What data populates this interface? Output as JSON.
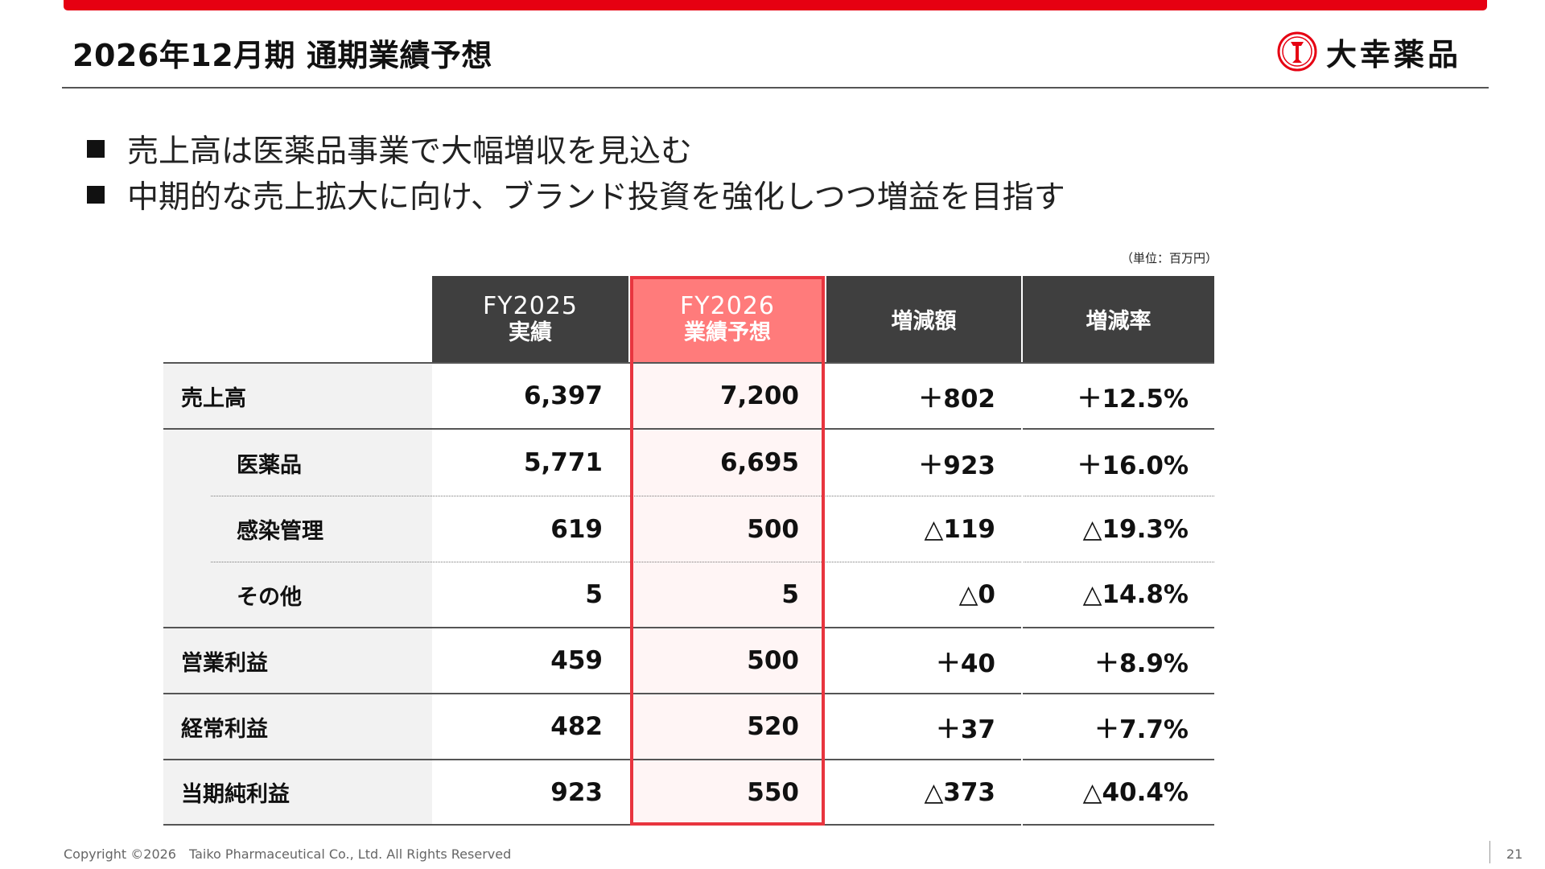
{
  "slide": {
    "title": "2026年12月期 通期業績予想",
    "accent_color": "#e60012",
    "logo": {
      "icon": "taiko-mark-icon",
      "text": "大幸薬品"
    },
    "bullets": [
      "売上高は医薬品事業で大幅増収を見込む",
      "中期的な売上拡大に向け、ブランド投資を強化しつつ増益を目指す"
    ],
    "unit_note": "（単位：百万円）",
    "copyright": "Copyright ©2026　Taiko Pharmaceutical Co., Ltd. All Rights Reserved",
    "page_number": "21"
  },
  "table": {
    "headers": [
      {
        "line1": "FY2025",
        "line2": "実績"
      },
      {
        "line1": "FY2026",
        "line2": "業績予想"
      },
      {
        "line1": "増減額"
      },
      {
        "line1": "増減率"
      }
    ],
    "rows": [
      {
        "label": "売上高",
        "values": [
          "6,397",
          "7,200",
          "＋802",
          "＋12.5%"
        ]
      },
      {
        "label": "医薬品",
        "values": [
          "5,771",
          "6,695",
          "＋923",
          "＋16.0%"
        ]
      },
      {
        "label": "感染管理",
        "values": [
          "619",
          "500",
          "△119",
          "△19.3%"
        ]
      },
      {
        "label": "その他",
        "values": [
          "5",
          "5",
          "△0",
          "△14.8%"
        ]
      },
      {
        "label": "営業利益",
        "values": [
          "459",
          "500",
          "＋40",
          "＋8.9%"
        ]
      },
      {
        "label": "経常利益",
        "values": [
          "482",
          "520",
          "＋37",
          "＋7.7%"
        ]
      },
      {
        "label": "当期純利益",
        "values": [
          "923",
          "550",
          "△373",
          "△40.4%"
        ]
      }
    ],
    "highlight_color": "#e8353f"
  }
}
